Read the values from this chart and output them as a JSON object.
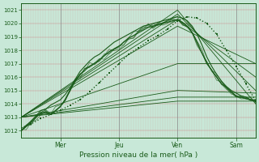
{
  "xlabel": "Pression niveau de la mer( hPa )",
  "bg_color": "#c8e8d8",
  "plot_bg_color": "#c8e8d8",
  "line_color": "#1a5c1a",
  "ylim": [
    1011.5,
    1021.5
  ],
  "yticks": [
    1012,
    1013,
    1014,
    1015,
    1016,
    1017,
    1018,
    1019,
    1020,
    1021
  ],
  "xlim": [
    0,
    96
  ],
  "xtick_positions": [
    16,
    40,
    64,
    88
  ],
  "xtick_labels": [
    "Mer",
    "Jeu",
    "Ven",
    "Sam"
  ],
  "vline_positions": [
    16,
    40,
    64,
    88
  ],
  "ensemble_lines": [
    {
      "x": [
        0,
        64,
        96
      ],
      "y": [
        1013.0,
        1021.0,
        1014.0
      ]
    },
    {
      "x": [
        0,
        64,
        96
      ],
      "y": [
        1013.0,
        1020.7,
        1015.0
      ]
    },
    {
      "x": [
        0,
        64,
        96
      ],
      "y": [
        1013.0,
        1020.3,
        1016.0
      ]
    },
    {
      "x": [
        0,
        64,
        96
      ],
      "y": [
        1013.0,
        1019.8,
        1017.0
      ]
    },
    {
      "x": [
        0,
        64,
        96
      ],
      "y": [
        1013.0,
        1014.2,
        1014.2
      ]
    },
    {
      "x": [
        0,
        64,
        96
      ],
      "y": [
        1013.0,
        1014.5,
        1014.5
      ]
    },
    {
      "x": [
        0,
        64,
        96
      ],
      "y": [
        1013.0,
        1015.0,
        1014.8
      ]
    },
    {
      "x": [
        0,
        64,
        96
      ],
      "y": [
        1013.0,
        1017.0,
        1017.0
      ]
    }
  ],
  "main_line_x": [
    0,
    4,
    8,
    12,
    16,
    20,
    24,
    28,
    32,
    36,
    40,
    44,
    48,
    52,
    56,
    60,
    64,
    68,
    72,
    76,
    80,
    84,
    88,
    92,
    96
  ],
  "main_line_y": [
    1012.2,
    1012.5,
    1012.9,
    1013.2,
    1013.5,
    1013.9,
    1014.3,
    1014.9,
    1015.6,
    1016.3,
    1017.0,
    1017.7,
    1018.2,
    1018.7,
    1019.1,
    1019.6,
    1020.2,
    1020.5,
    1020.4,
    1020.0,
    1019.2,
    1018.0,
    1016.8,
    1015.5,
    1014.2
  ],
  "wavy_x": [
    0,
    2,
    4,
    6,
    8,
    10,
    12,
    14,
    16,
    18,
    20,
    22,
    24,
    26,
    28,
    30,
    32,
    34,
    36,
    38,
    40,
    42,
    44,
    46,
    48,
    50,
    52,
    54,
    56,
    58,
    60,
    62,
    64,
    66,
    68,
    70,
    72,
    74,
    76,
    78,
    80,
    82,
    84,
    86,
    88,
    90,
    92,
    94,
    96
  ],
  "wavy_y": [
    1012.0,
    1012.3,
    1012.6,
    1013.0,
    1013.3,
    1013.4,
    1013.2,
    1013.5,
    1013.8,
    1014.3,
    1015.0,
    1015.7,
    1016.2,
    1016.5,
    1016.8,
    1017.0,
    1017.3,
    1017.6,
    1017.9,
    1018.1,
    1018.3,
    1018.6,
    1018.9,
    1019.1,
    1019.3,
    1019.5,
    1019.7,
    1019.8,
    1019.9,
    1020.0,
    1020.1,
    1020.2,
    1020.3,
    1020.1,
    1019.8,
    1019.3,
    1018.6,
    1017.8,
    1017.0,
    1016.5,
    1016.0,
    1015.5,
    1015.2,
    1014.9,
    1014.6,
    1014.5,
    1014.4,
    1014.3,
    1014.2
  ],
  "wavy2_y": [
    1012.0,
    1012.4,
    1012.7,
    1013.1,
    1013.5,
    1013.6,
    1013.9,
    1014.1,
    1014.3,
    1014.7,
    1015.2,
    1015.8,
    1016.4,
    1016.8,
    1017.2,
    1017.5,
    1017.7,
    1018.0,
    1018.3,
    1018.6,
    1018.8,
    1019.0,
    1019.2,
    1019.4,
    1019.6,
    1019.8,
    1019.9,
    1020.0,
    1020.1,
    1020.2,
    1020.3,
    1020.4,
    1020.5,
    1020.4,
    1020.2,
    1019.8,
    1019.2,
    1018.4,
    1017.5,
    1016.8,
    1016.2,
    1015.7,
    1015.3,
    1015.0,
    1014.8,
    1014.6,
    1014.5,
    1014.3,
    1014.2
  ]
}
